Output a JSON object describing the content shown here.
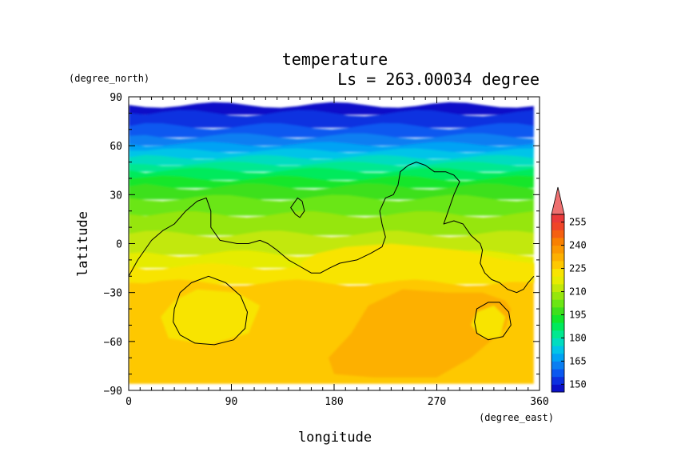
{
  "chart_data": {
    "type": "heatmap",
    "title": "temperature",
    "subtitle": "Ls = 263.00034 degree",
    "xlabel": "longitude",
    "ylabel": "latitude",
    "x_units": "(degree_east)",
    "y_units": "(degree_north)",
    "xlim": [
      0,
      360
    ],
    "ylim": [
      -90,
      90
    ],
    "x_ticks": [
      0,
      90,
      180,
      270,
      360
    ],
    "y_ticks": [
      90,
      60,
      30,
      0,
      -30,
      -60,
      -90
    ],
    "x_tick_labels": [
      "0",
      "90",
      "180",
      "270",
      "360"
    ],
    "y_tick_labels": [
      "90",
      "60",
      "30",
      "0",
      "−30",
      "−60",
      "−90"
    ],
    "data_extent": {
      "lon": [
        0,
        355
      ],
      "lat": [
        -85,
        85
      ]
    },
    "colorbar": {
      "levels": [
        145,
        150,
        155,
        160,
        165,
        170,
        175,
        180,
        185,
        190,
        195,
        200,
        205,
        210,
        215,
        220,
        225,
        230,
        235,
        240,
        245,
        250,
        255,
        260
      ],
      "colors": [
        "#0a10c8",
        "#0c30e0",
        "#0a58f0",
        "#0a7ef2",
        "#00a2f4",
        "#00c4e8",
        "#00dcc0",
        "#00e890",
        "#00ea5c",
        "#12e62c",
        "#3ee01c",
        "#6ae614",
        "#96e60c",
        "#c2e808",
        "#e6ec00",
        "#f8e400",
        "#fec800",
        "#fdb000",
        "#fc9800",
        "#f98000",
        "#f56010",
        "#f04428",
        "#ea3a3a",
        "#ee7070"
      ],
      "labels": [
        "255",
        "240",
        "225",
        "210",
        "195",
        "180",
        "165",
        "150"
      ],
      "label_values": [
        255,
        240,
        225,
        210,
        195,
        180,
        165,
        150
      ],
      "extend": "max"
    },
    "latitude_bands": [
      {
        "lat": [
          80,
          85
        ],
        "value": 147
      },
      {
        "lat": [
          72,
          80
        ],
        "value": 152
      },
      {
        "lat": [
          66,
          72
        ],
        "value": 157
      },
      {
        "lat": [
          61,
          66
        ],
        "value": 162
      },
      {
        "lat": [
          57,
          61
        ],
        "value": 167
      },
      {
        "lat": [
          53,
          57
        ],
        "value": 172
      },
      {
        "lat": [
          49,
          53
        ],
        "value": 177
      },
      {
        "lat": [
          45,
          49
        ],
        "value": 182
      },
      {
        "lat": [
          40,
          45
        ],
        "value": 187
      },
      {
        "lat": [
          35,
          40
        ],
        "value": 192
      },
      {
        "lat": [
          28,
          35
        ],
        "value": 197
      },
      {
        "lat": [
          18,
          28
        ],
        "value": 202
      },
      {
        "lat": [
          6,
          18
        ],
        "value": 207
      },
      {
        "lat": [
          -6,
          6
        ],
        "value": 212
      },
      {
        "lat": [
          -14,
          -6
        ],
        "value": 217
      },
      {
        "lat": [
          -24,
          -14
        ],
        "value": 222
      },
      {
        "lat": [
          -85,
          -24
        ],
        "value": 227
      }
    ],
    "regions": [
      {
        "value": 222,
        "points": [
          [
            165,
            -6
          ],
          [
            190,
            -2
          ],
          [
            230,
            0
          ],
          [
            290,
            -4
          ],
          [
            330,
            -10
          ],
          [
            355,
            -12
          ],
          [
            355,
            -24
          ],
          [
            300,
            -22
          ],
          [
            230,
            -20
          ],
          [
            160,
            -18
          ],
          [
            150,
            -12
          ]
        ]
      },
      {
        "value": 222,
        "points": [
          [
            40,
            -35
          ],
          [
            60,
            -28
          ],
          [
            95,
            -30
          ],
          [
            115,
            -38
          ],
          [
            105,
            -55
          ],
          [
            70,
            -62
          ],
          [
            35,
            -58
          ],
          [
            28,
            -45
          ]
        ]
      },
      {
        "value": 232,
        "points": [
          [
            180,
            -80
          ],
          [
            215,
            -82
          ],
          [
            270,
            -82
          ],
          [
            300,
            -70
          ],
          [
            330,
            -52
          ],
          [
            335,
            -40
          ],
          [
            330,
            -35
          ],
          [
            310,
            -30
          ],
          [
            280,
            -30
          ],
          [
            240,
            -28
          ],
          [
            210,
            -38
          ],
          [
            195,
            -55
          ],
          [
            175,
            -70
          ]
        ]
      },
      {
        "value": 222,
        "points": [
          [
            305,
            -42
          ],
          [
            320,
            -38
          ],
          [
            330,
            -45
          ],
          [
            325,
            -58
          ],
          [
            310,
            -58
          ],
          [
            300,
            -50
          ]
        ]
      }
    ],
    "contours": [
      {
        "closed": false,
        "points": [
          [
            0,
            -20
          ],
          [
            8,
            -10
          ],
          [
            20,
            2
          ],
          [
            30,
            8
          ],
          [
            40,
            12
          ],
          [
            50,
            20
          ],
          [
            60,
            26
          ],
          [
            68,
            28
          ],
          [
            72,
            20
          ],
          [
            72,
            10
          ],
          [
            80,
            2
          ],
          [
            95,
            0
          ],
          [
            105,
            0
          ],
          [
            115,
            2
          ],
          [
            122,
            0
          ],
          [
            130,
            -4
          ],
          [
            140,
            -10
          ],
          [
            150,
            -14
          ],
          [
            160,
            -18
          ],
          [
            168,
            -18
          ],
          [
            176,
            -15
          ],
          [
            185,
            -12
          ],
          [
            200,
            -10
          ],
          [
            212,
            -6
          ],
          [
            222,
            -2
          ],
          [
            225,
            4
          ],
          [
            222,
            12
          ],
          [
            220,
            20
          ],
          [
            225,
            28
          ],
          [
            232,
            30
          ],
          [
            236,
            36
          ],
          [
            238,
            44
          ],
          [
            245,
            48
          ],
          [
            252,
            50
          ],
          [
            260,
            48
          ],
          [
            268,
            44
          ],
          [
            278,
            44
          ],
          [
            285,
            42
          ],
          [
            290,
            38
          ],
          [
            285,
            30
          ],
          [
            280,
            20
          ],
          [
            276,
            12
          ],
          [
            285,
            14
          ],
          [
            293,
            12
          ],
          [
            300,
            5
          ],
          [
            308,
            0
          ],
          [
            310,
            -4
          ],
          [
            308,
            -12
          ],
          [
            312,
            -18
          ],
          [
            318,
            -22
          ],
          [
            325,
            -24
          ],
          [
            332,
            -28
          ],
          [
            340,
            -30
          ],
          [
            346,
            -28
          ],
          [
            350,
            -24
          ],
          [
            355,
            -20
          ]
        ]
      },
      {
        "closed": true,
        "points": [
          [
            142,
            22
          ],
          [
            148,
            28
          ],
          [
            152,
            26
          ],
          [
            154,
            20
          ],
          [
            150,
            16
          ],
          [
            146,
            18
          ]
        ]
      },
      {
        "closed": true,
        "points": [
          [
            40,
            -40
          ],
          [
            45,
            -30
          ],
          [
            55,
            -24
          ],
          [
            70,
            -20
          ],
          [
            85,
            -24
          ],
          [
            98,
            -32
          ],
          [
            104,
            -42
          ],
          [
            102,
            -52
          ],
          [
            92,
            -59
          ],
          [
            75,
            -62
          ],
          [
            58,
            -61
          ],
          [
            45,
            -56
          ],
          [
            39,
            -48
          ]
        ]
      },
      {
        "closed": true,
        "points": [
          [
            303,
            -48
          ],
          [
            305,
            -40
          ],
          [
            315,
            -36
          ],
          [
            325,
            -36
          ],
          [
            333,
            -42
          ],
          [
            335,
            -50
          ],
          [
            328,
            -57
          ],
          [
            315,
            -59
          ],
          [
            305,
            -55
          ]
        ]
      }
    ]
  }
}
